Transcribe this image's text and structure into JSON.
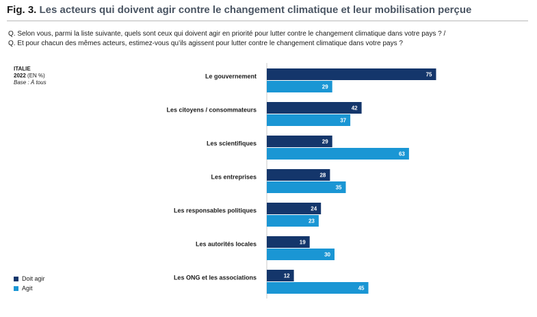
{
  "header": {
    "fig_number": "Fig. 3.",
    "title": "Les acteurs qui doivent agir contre le changement climatique et leur mobilisation perçue"
  },
  "questions": {
    "q1": "Q. Selon vous, parmi la liste suivante, quels sont ceux qui doivent agir en priorité pour lutter contre le changement climatique dans votre pays ? /",
    "q2": "Q. Et pour chacun des mêmes acteurs, estimez-vous qu’ils agissent pour lutter contre le changement climatique dans votre pays ?"
  },
  "meta": {
    "country": "ITALIE",
    "year": "2022",
    "unit": "(EN %)",
    "base": "Base : À tous"
  },
  "colors": {
    "doit_agir": "#14366b",
    "agit": "#1a96d4"
  },
  "chart_data": {
    "type": "bar",
    "orientation": "horizontal",
    "title": "Les acteurs qui doivent agir contre le changement climatique et leur mobilisation perçue",
    "categories": [
      "Le gouvernement",
      "Les citoyens / consommateurs",
      "Les scientifiques",
      "Les entreprises",
      "Les responsables politiques",
      "Les autorités locales",
      "Les ONG et les associations"
    ],
    "series": [
      {
        "name": "Doit agir",
        "color": "#14366b",
        "values": [
          75,
          42,
          29,
          28,
          24,
          19,
          12
        ]
      },
      {
        "name": "Agit",
        "color": "#1a96d4",
        "values": [
          29,
          37,
          63,
          35,
          23,
          30,
          45
        ]
      }
    ],
    "xlim": [
      0,
      100
    ],
    "grid": false,
    "data_labels": true,
    "legend_position": "bottom-left"
  }
}
